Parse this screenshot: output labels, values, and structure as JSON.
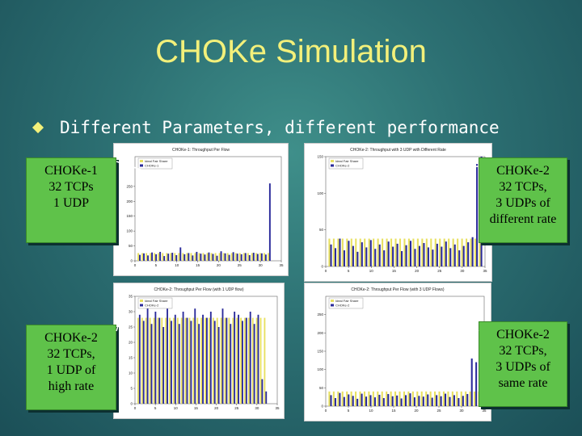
{
  "slide": {
    "title": "CHOKe Simulation",
    "bullet": "Different Parameters, different performance"
  },
  "callouts": {
    "top_left": [
      "CHOKe-1",
      "32 TCPs",
      "1 UDP"
    ],
    "top_right": [
      "CHOKe-2",
      "32 TCPs,",
      "3 UDPs of",
      "different rate"
    ],
    "bottom_left": [
      "CHOKe-2",
      "32 TCPs,",
      "1 UDP of",
      "high rate"
    ],
    "bottom_right": [
      "CHOKe-2",
      "32 TCPs,",
      "3 UDPs of",
      "same rate"
    ]
  },
  "colors": {
    "title": "#f3f07a",
    "callout": "#5fc24a",
    "fair_share": "#e8e060",
    "choke": "#2a2a9a"
  },
  "chart_data": [
    {
      "type": "bar",
      "title": "CHOKe-1: Throughput Per Flow",
      "legend": [
        "Ideal Fair Share",
        "CHOKe-1"
      ],
      "series": [
        {
          "name": "Ideal Fair Share",
          "values": [
            26,
            26,
            26,
            26,
            26,
            26,
            26,
            26,
            26,
            26,
            26,
            26,
            26,
            26,
            26,
            26,
            26,
            26,
            26,
            26,
            26,
            26,
            26,
            26,
            26,
            26,
            26,
            26,
            26,
            26,
            26,
            26,
            26
          ]
        },
        {
          "name": "CHOKe-1",
          "values": [
            20,
            25,
            18,
            28,
            22,
            30,
            16,
            24,
            27,
            19,
            45,
            22,
            26,
            18,
            30,
            24,
            21,
            28,
            23,
            17,
            32,
            25,
            20,
            29,
            24,
            22,
            26,
            19,
            27,
            23,
            25,
            21,
            260
          ]
        }
      ],
      "ylim": [
        0,
        350
      ],
      "yticks": [
        0,
        50,
        100,
        150,
        200,
        250
      ],
      "xticks": [
        0,
        5,
        10,
        15,
        20,
        25,
        30,
        35
      ]
    },
    {
      "type": "bar",
      "title": "CHOKe-2: Throughput with 3 UDP with Different Rate",
      "legend": [
        "Ideal Fair Share",
        "CHOKe-2"
      ],
      "series": [
        {
          "name": "Ideal Fair Share",
          "values": [
            38,
            38,
            38,
            38,
            38,
            38,
            38,
            38,
            38,
            38,
            38,
            38,
            38,
            38,
            38,
            38,
            38,
            38,
            38,
            38,
            38,
            38,
            38,
            38,
            38,
            38,
            38,
            38,
            38,
            38,
            38,
            38,
            38,
            38,
            38
          ]
        },
        {
          "name": "CHOKe-2",
          "values": [
            30,
            25,
            38,
            22,
            35,
            28,
            20,
            33,
            26,
            36,
            24,
            30,
            22,
            34,
            27,
            31,
            21,
            29,
            35,
            24,
            28,
            32,
            26,
            23,
            31,
            27,
            34,
            25,
            30,
            22,
            28,
            33,
            40,
            140,
            150
          ]
        }
      ],
      "ylim": [
        0,
        150
      ],
      "yticks": [
        0,
        50,
        100,
        150
      ],
      "xticks": [
        0,
        5,
        10,
        15,
        20,
        25,
        30,
        35
      ]
    },
    {
      "type": "bar",
      "title": "CHOKe-2: Throughput Per Flow (with 1 UDP flow)",
      "legend": [
        "Ideal Fair Share",
        "CHOKe-2"
      ],
      "series": [
        {
          "name": "Ideal Fair Share",
          "values": [
            28,
            28,
            28,
            28,
            28,
            28,
            28,
            28,
            28,
            28,
            28,
            28,
            28,
            28,
            28,
            28,
            28,
            28,
            28,
            28,
            28,
            28,
            28,
            28,
            28,
            28,
            28,
            28,
            28,
            28,
            28,
            28,
            28
          ]
        },
        {
          "name": "CHOKe-2",
          "values": [
            29,
            27,
            32,
            26,
            30,
            28,
            25,
            31,
            27,
            29,
            26,
            30,
            28,
            27,
            31,
            26,
            29,
            28,
            30,
            27,
            25,
            31,
            28,
            26,
            30,
            29,
            27,
            28,
            30,
            26,
            29,
            8,
            4
          ]
        }
      ],
      "ylim": [
        0,
        35
      ],
      "yticks": [
        0,
        5,
        10,
        15,
        20,
        25,
        30,
        35
      ],
      "xticks": [
        0,
        5,
        10,
        15,
        20,
        25,
        30,
        35
      ]
    },
    {
      "type": "bar",
      "title": "CHOKe-2: Throughput Per Flow (with 3 UDP Flows)",
      "legend": [
        "Ideal Fair Share",
        "CHOKe-2"
      ],
      "series": [
        {
          "name": "Ideal Fair Share",
          "values": [
            40,
            40,
            40,
            40,
            40,
            40,
            40,
            40,
            40,
            40,
            40,
            40,
            40,
            40,
            40,
            40,
            40,
            40,
            40,
            40,
            40,
            40,
            40,
            40,
            40,
            40,
            40,
            40,
            40,
            40,
            40,
            40,
            40,
            40,
            40
          ]
        },
        {
          "name": "CHOKe-2",
          "values": [
            30,
            22,
            36,
            25,
            32,
            28,
            20,
            34,
            26,
            30,
            24,
            31,
            22,
            33,
            27,
            29,
            21,
            30,
            35,
            24,
            28,
            26,
            32,
            23,
            30,
            27,
            34,
            25,
            30,
            22,
            28,
            33,
            130,
            120,
            140
          ]
        }
      ],
      "ylim": [
        0,
        300
      ],
      "yticks": [
        0,
        50,
        100,
        150,
        200,
        250
      ],
      "xticks": [
        0,
        5,
        10,
        15,
        20,
        25,
        30,
        35
      ]
    }
  ]
}
